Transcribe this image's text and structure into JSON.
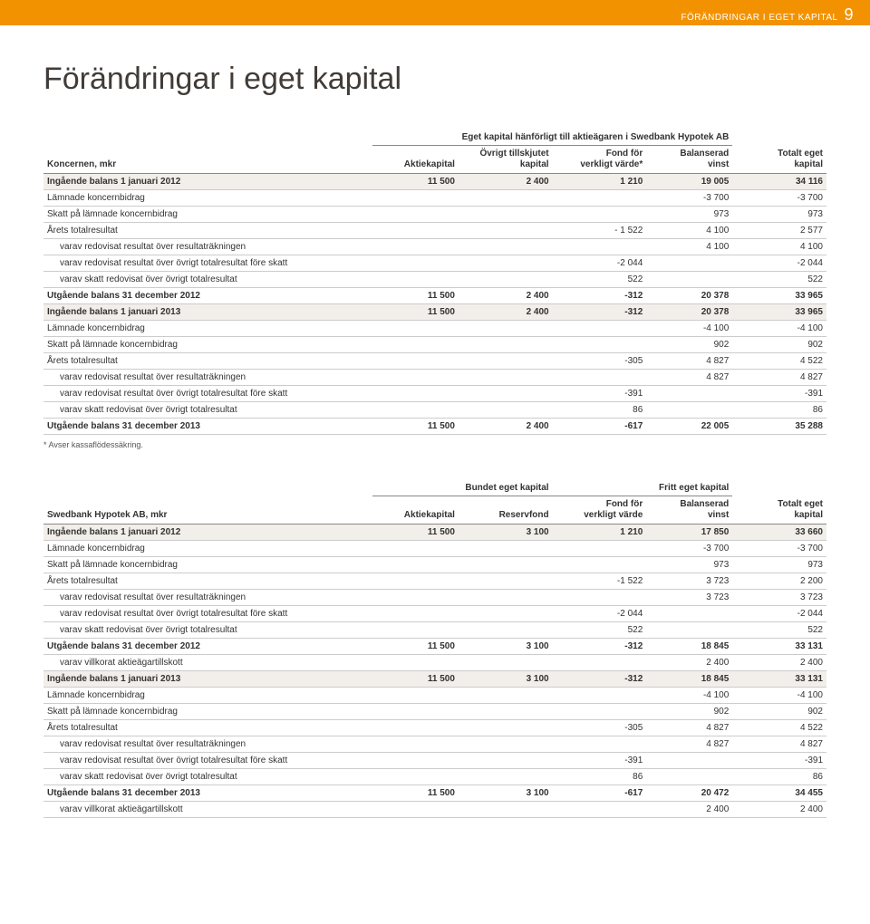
{
  "header": {
    "label": "FÖRÄNDRINGAR I EGET KAPITAL",
    "page": "9"
  },
  "title": "Förändringar i eget kapital",
  "colors": {
    "accent": "#f39200",
    "shade": "#f2eee9",
    "rule": "#cccccc",
    "text": "#333333"
  },
  "table1": {
    "spanHeader": "Eget kapital hänförligt till aktieägaren i Swedbank Hypotek AB",
    "cols": [
      "Koncernen, mkr",
      "Aktiekapital",
      "Övrigt tillskjutet\nkapital",
      "Fond för\nverkligt värde*",
      "Balanserad\nvinst",
      "Totalt eget\nkapital"
    ],
    "rows": [
      {
        "c": [
          "Ingående balans 1 januari 2012",
          "11 500",
          "2 400",
          "1 210",
          "19 005",
          "34 116"
        ],
        "bold": true,
        "shade": true
      },
      {
        "c": [
          "Lämnade koncernbidrag",
          "",
          "",
          "",
          "-3 700",
          "-3 700"
        ]
      },
      {
        "c": [
          "Skatt på lämnade koncernbidrag",
          "",
          "",
          "",
          "973",
          "973"
        ]
      },
      {
        "c": [
          "Årets totalresultat",
          "",
          "",
          "- 1 522",
          "4 100",
          "2 577"
        ]
      },
      {
        "c": [
          "varav redovisat resultat över resultaträkningen",
          "",
          "",
          "",
          "4 100",
          "4 100"
        ],
        "indent": true
      },
      {
        "c": [
          "varav redovisat resultat över övrigt totalresultat före skatt",
          "",
          "",
          "-2 044",
          "",
          "-2 044"
        ],
        "indent": true
      },
      {
        "c": [
          "varav skatt redovisat över övrigt totalresultat",
          "",
          "",
          "522",
          "",
          "522"
        ],
        "indent": true
      },
      {
        "c": [
          "Utgående balans 31 december 2012",
          "11 500",
          "2 400",
          "-312",
          "20 378",
          "33 965"
        ],
        "bold": true
      },
      {
        "c": [
          "Ingående balans 1 januari 2013",
          "11 500",
          "2 400",
          "-312",
          "20 378",
          "33 965"
        ],
        "bold": true,
        "shade": true
      },
      {
        "c": [
          "Lämnade koncernbidrag",
          "",
          "",
          "",
          "-4 100",
          "-4 100"
        ]
      },
      {
        "c": [
          "Skatt på lämnade koncernbidrag",
          "",
          "",
          "",
          "902",
          "902"
        ]
      },
      {
        "c": [
          "Årets totalresultat",
          "",
          "",
          "-305",
          "4 827",
          "4 522"
        ]
      },
      {
        "c": [
          "varav redovisat resultat över resultaträkningen",
          "",
          "",
          "",
          "4 827",
          "4 827"
        ],
        "indent": true
      },
      {
        "c": [
          "varav redovisat resultat över övrigt totalresultat före skatt",
          "",
          "",
          "-391",
          "",
          "-391"
        ],
        "indent": true
      },
      {
        "c": [
          "varav skatt redovisat över övrigt totalresultat",
          "",
          "",
          "86",
          "",
          "86"
        ],
        "indent": true
      },
      {
        "c": [
          "Utgående balans 31 december 2013",
          "11 500",
          "2 400",
          "-617",
          "22 005",
          "35 288"
        ],
        "bold": true
      }
    ],
    "footnote": "* Avser kassaflödessäkring."
  },
  "table2": {
    "spanHeaders": [
      "Bundet eget kapital",
      "Fritt eget kapital"
    ],
    "cols": [
      "Swedbank Hypotek AB, mkr",
      "Aktiekapital",
      "Reservfond",
      "Fond för\nverkligt värde",
      "Balanserad\nvinst",
      "Totalt eget\nkapital"
    ],
    "rows": [
      {
        "c": [
          "Ingående balans 1 januari 2012",
          "11 500",
          "3 100",
          "1 210",
          "17 850",
          "33 660"
        ],
        "bold": true,
        "shade": true
      },
      {
        "c": [
          "Lämnade koncernbidrag",
          "",
          "",
          "",
          "-3 700",
          "-3 700"
        ]
      },
      {
        "c": [
          "Skatt på lämnade koncernbidrag",
          "",
          "",
          "",
          "973",
          "973"
        ]
      },
      {
        "c": [
          "Årets totalresultat",
          "",
          "",
          "-1 522",
          "3 723",
          "2 200"
        ]
      },
      {
        "c": [
          "varav redovisat resultat över resultaträkningen",
          "",
          "",
          "",
          "3 723",
          "3 723"
        ],
        "indent": true
      },
      {
        "c": [
          "varav redovisat resultat över övrigt totalresultat före skatt",
          "",
          "",
          "-2 044",
          "",
          "-2 044"
        ],
        "indent": true
      },
      {
        "c": [
          "varav skatt redovisat över övrigt totalresultat",
          "",
          "",
          "522",
          "",
          "522"
        ],
        "indent": true
      },
      {
        "c": [
          "Utgående balans 31 december 2012",
          "11 500",
          "3 100",
          "-312",
          "18 845",
          "33 131"
        ],
        "bold": true
      },
      {
        "c": [
          "varav villkorat aktieägartillskott",
          "",
          "",
          "",
          "2 400",
          "2 400"
        ],
        "indent": true
      },
      {
        "c": [
          "Ingående balans 1 januari 2013",
          "11 500",
          "3 100",
          "-312",
          "18 845",
          "33 131"
        ],
        "bold": true,
        "shade": true
      },
      {
        "c": [
          "Lämnade koncernbidrag",
          "",
          "",
          "",
          "-4 100",
          "-4 100"
        ]
      },
      {
        "c": [
          "Skatt på lämnade koncernbidrag",
          "",
          "",
          "",
          "902",
          "902"
        ]
      },
      {
        "c": [
          "Årets totalresultat",
          "",
          "",
          "-305",
          "4 827",
          "4 522"
        ]
      },
      {
        "c": [
          "varav redovisat resultat över resultaträkningen",
          "",
          "",
          "",
          "4 827",
          "4 827"
        ],
        "indent": true
      },
      {
        "c": [
          "varav redovisat resultat över övrigt totalresultat före skatt",
          "",
          "",
          "-391",
          "",
          "-391"
        ],
        "indent": true
      },
      {
        "c": [
          "varav skatt redovisat över övrigt totalresultat",
          "",
          "",
          "86",
          "",
          "86"
        ],
        "indent": true
      },
      {
        "c": [
          "Utgående balans 31 december 2013",
          "11 500",
          "3 100",
          "-617",
          "20 472",
          "34 455"
        ],
        "bold": true
      },
      {
        "c": [
          "varav villkorat aktieägartillskott",
          "",
          "",
          "",
          "2 400",
          "2 400"
        ],
        "indent": true
      }
    ]
  }
}
